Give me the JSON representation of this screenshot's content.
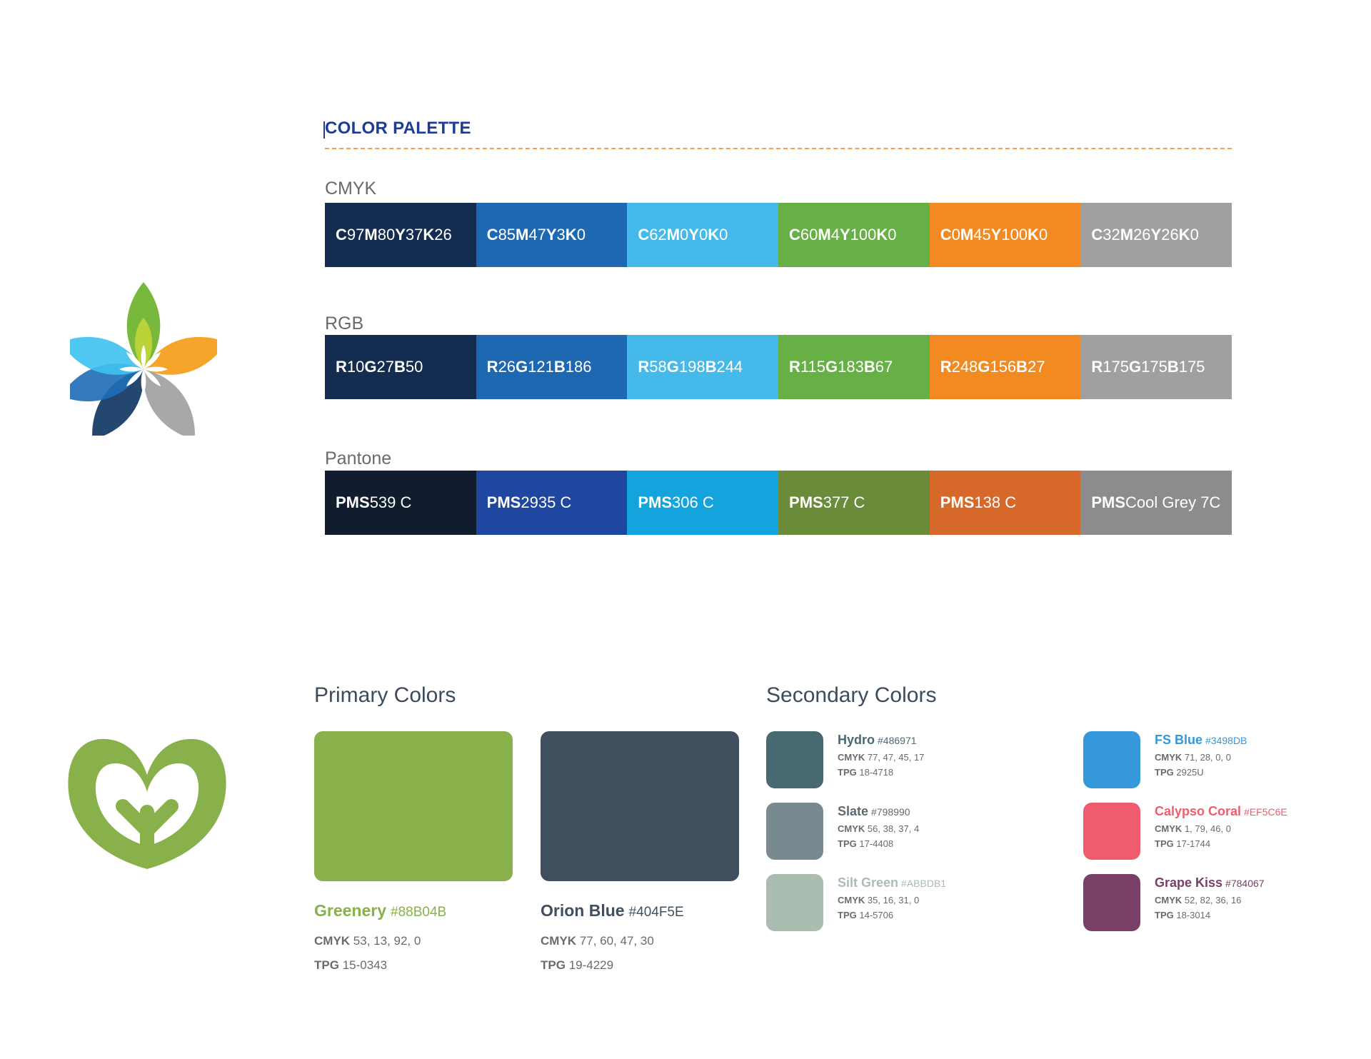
{
  "palette": {
    "title": "COLOR PALETTE",
    "rows": [
      {
        "label": "CMYK",
        "swatches": [
          {
            "color": "#142c50",
            "parts": [
              [
                "C",
                "97"
              ],
              [
                "M",
                "80"
              ],
              [
                "Y",
                "37"
              ],
              [
                "K",
                "26"
              ]
            ]
          },
          {
            "color": "#1e68b2",
            "parts": [
              [
                "C",
                "85"
              ],
              [
                "M",
                "47"
              ],
              [
                "Y",
                "3"
              ],
              [
                "K",
                "0"
              ]
            ]
          },
          {
            "color": "#44b9ea",
            "parts": [
              [
                "C",
                "62"
              ],
              [
                "M",
                "0"
              ],
              [
                "Y",
                "0"
              ],
              [
                "K",
                "0"
              ]
            ]
          },
          {
            "color": "#67b045",
            "parts": [
              [
                "C",
                "60"
              ],
              [
                "M",
                "4"
              ],
              [
                "Y",
                "100"
              ],
              [
                "K",
                "0"
              ]
            ]
          },
          {
            "color": "#f08a21",
            "parts": [
              [
                "C",
                "0"
              ],
              [
                "M",
                "45"
              ],
              [
                "Y",
                "100"
              ],
              [
                "K",
                "0"
              ]
            ]
          },
          {
            "color": "#a0a0a0",
            "parts": [
              [
                "C",
                "32"
              ],
              [
                "M",
                "26"
              ],
              [
                "Y",
                "26"
              ],
              [
                "K",
                "0"
              ]
            ]
          }
        ]
      },
      {
        "label": "RGB",
        "swatches": [
          {
            "color": "#142c50",
            "parts": [
              [
                "R",
                "10"
              ],
              [
                "G",
                "27"
              ],
              [
                "B",
                "50"
              ]
            ]
          },
          {
            "color": "#1e68b2",
            "parts": [
              [
                "R",
                "26"
              ],
              [
                "G",
                "121"
              ],
              [
                "B",
                "186"
              ]
            ]
          },
          {
            "color": "#44b9ea",
            "parts": [
              [
                "R",
                "58"
              ],
              [
                "G",
                "198"
              ],
              [
                "B",
                "244"
              ]
            ]
          },
          {
            "color": "#67b045",
            "parts": [
              [
                "R",
                "115"
              ],
              [
                "G",
                "183"
              ],
              [
                "B",
                "67"
              ]
            ]
          },
          {
            "color": "#f08a21",
            "parts": [
              [
                "R",
                "248"
              ],
              [
                "G",
                "156"
              ],
              [
                "B",
                "27"
              ]
            ]
          },
          {
            "color": "#a0a0a0",
            "parts": [
              [
                "R",
                "175"
              ],
              [
                "G",
                "175"
              ],
              [
                "B",
                "175"
              ]
            ]
          }
        ]
      },
      {
        "label": "Pantone",
        "swatches": [
          {
            "color": "#111d2e",
            "parts": [
              [
                "PMS",
                "539 C"
              ]
            ]
          },
          {
            "color": "#1f479f",
            "parts": [
              [
                "PMS",
                "2935 C"
              ]
            ]
          },
          {
            "color": "#13a4dd",
            "parts": [
              [
                "PMS",
                "306 C"
              ]
            ]
          },
          {
            "color": "#6a8b39",
            "parts": [
              [
                "PMS",
                "377 C"
              ]
            ]
          },
          {
            "color": "#d6692a",
            "parts": [
              [
                "PMS",
                "138 C"
              ]
            ]
          },
          {
            "color": "#8c8c8c",
            "parts": [
              [
                "PMS",
                "Cool Grey 7C"
              ]
            ]
          }
        ]
      }
    ]
  },
  "primary": {
    "title": "Primary Colors",
    "items": [
      {
        "name": "Greenery",
        "hex": "#88B04B",
        "cmyk_label": "CMYK",
        "cmyk": "53, 13, 92, 0",
        "tpg_label": "TPG",
        "tpg": "15-0343",
        "color": "#88b04b",
        "name_color": "#88b04b"
      },
      {
        "name": "Orion Blue",
        "hex": "#404F5E",
        "cmyk_label": "CMYK",
        "cmyk": "77, 60, 47, 30",
        "tpg_label": "TPG",
        "tpg": "19-4229",
        "color": "#404f5e",
        "name_color": "#404f5e"
      }
    ]
  },
  "secondary": {
    "title": "Secondary Colors",
    "items": [
      {
        "name": "Hydro",
        "hex": "#486971",
        "cmyk_label": "CMYK",
        "cmyk": "77, 47, 45, 17",
        "tpg_label": "TPG",
        "tpg": "18-4718",
        "color": "#486971",
        "name_color": "#486971"
      },
      {
        "name": "Slate",
        "hex": "#798990",
        "cmyk_label": "CMYK",
        "cmyk": "56, 38, 37, 4",
        "tpg_label": "TPG",
        "tpg": "17-4408",
        "color": "#798990",
        "name_color": "#5e6a70"
      },
      {
        "name": "Silt Green",
        "hex": "#ABBDB1",
        "cmyk_label": "CMYK",
        "cmyk": "35, 16, 31, 0",
        "tpg_label": "TPG",
        "tpg": "14-5706",
        "color": "#abbdb1",
        "name_color": "#abbdb1"
      },
      {
        "name": "FS Blue",
        "hex": "#3498DB",
        "cmyk_label": "CMYK",
        "cmyk": "71, 28, 0, 0",
        "tpg_label": "TPG",
        "tpg": "2925U",
        "color": "#3498db",
        "name_color": "#3498db"
      },
      {
        "name": "Calypso Coral",
        "hex": "#EF5C6E",
        "cmyk_label": "CMYK",
        "cmyk": "1, 79, 46, 0",
        "tpg_label": "TPG",
        "tpg": "17-1744",
        "color": "#ef5c6e",
        "name_color": "#ef5c6e"
      },
      {
        "name": "Grape Kiss",
        "hex": "#784067",
        "cmyk_label": "CMYK",
        "cmyk": "52, 82, 36, 16",
        "tpg_label": "TPG",
        "tpg": "18-3014",
        "color": "#784067",
        "name_color": "#784067"
      }
    ]
  },
  "logos": {
    "flower_icon": "flower-logo-icon",
    "leaf_icon": "leaf-heart-logo-icon",
    "leaf_color": "#88b04b"
  }
}
